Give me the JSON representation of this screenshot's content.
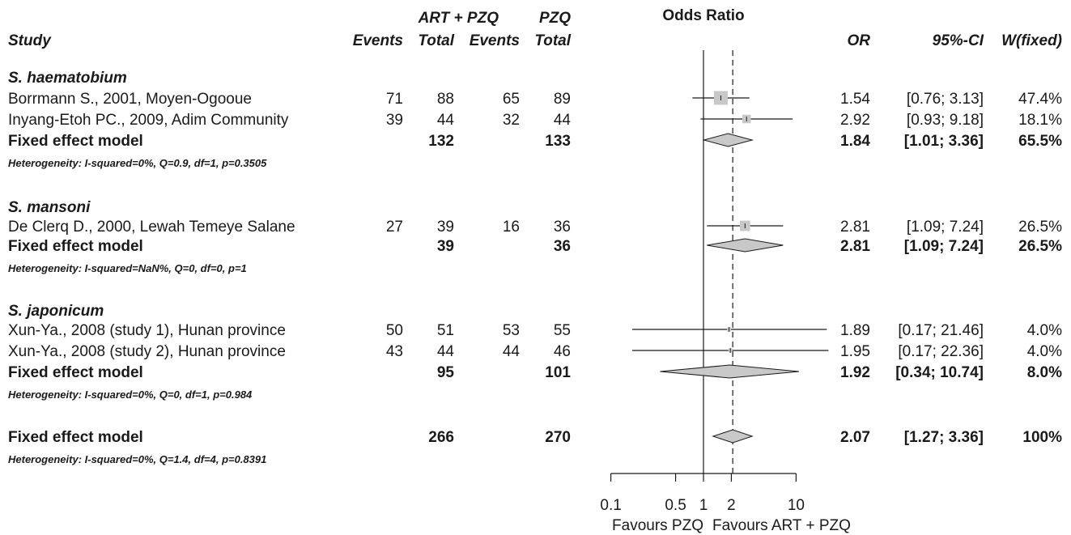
{
  "chart_data": {
    "type": "forest",
    "scale": "log",
    "title": "Odds Ratio",
    "x_ticks": [
      0.1,
      0.5,
      1,
      2,
      10
    ],
    "null_value": 1,
    "pooled_value": 2.07,
    "favours_left": "Favours PZQ",
    "favours_right": "Favours ART + PZQ",
    "header": {
      "group1": "ART + PZQ",
      "group2": "PZQ",
      "study": "Study",
      "events": "Events",
      "total": "Total",
      "or": "OR",
      "ci": "95%-CI",
      "weight": "W(fixed)"
    },
    "rows": [
      {
        "kind": "group",
        "label": "S. haematobium"
      },
      {
        "kind": "study",
        "label": "Borrmann S., 2001, Moyen-Ogooue",
        "e1": "71",
        "n1": "88",
        "e2": "65",
        "n2": "89",
        "or": 1.54,
        "lo": 0.76,
        "hi": 3.13,
        "or_text": "1.54",
        "ci_text": "[0.76;  3.13]",
        "w_text": "47.4%",
        "w": 47.4
      },
      {
        "kind": "study",
        "label": "Inyang-Etoh PC., 2009, Adim Community",
        "e1": "39",
        "n1": "44",
        "e2": "32",
        "n2": "44",
        "or": 2.92,
        "lo": 0.93,
        "hi": 9.18,
        "or_text": "2.92",
        "ci_text": "[0.93;  9.18]",
        "w_text": "18.1%",
        "w": 18.1
      },
      {
        "kind": "pooled",
        "label": "Fixed effect model",
        "n1": "132",
        "n2": "133",
        "or": 1.84,
        "lo": 1.01,
        "hi": 3.36,
        "or_text": "1.84",
        "ci_text": "[1.01;  3.36]",
        "w_text": "65.5%"
      },
      {
        "kind": "het",
        "label": "Heterogeneity: I-squared=0%, Q=0.9, df=1, p=0.3505"
      },
      {
        "kind": "group",
        "label": "S. mansoni"
      },
      {
        "kind": "study",
        "label": "De Clerq D., 2000, Lewah Temeye Salane",
        "e1": "27",
        "n1": "39",
        "e2": "16",
        "n2": "36",
        "or": 2.81,
        "lo": 1.09,
        "hi": 7.24,
        "or_text": "2.81",
        "ci_text": "[1.09;  7.24]",
        "w_text": "26.5%",
        "w": 26.5
      },
      {
        "kind": "pooled",
        "label": "Fixed effect model",
        "n1": "39",
        "n2": "36",
        "or": 2.81,
        "lo": 1.09,
        "hi": 7.24,
        "or_text": "2.81",
        "ci_text": "[1.09;  7.24]",
        "w_text": "26.5%"
      },
      {
        "kind": "het",
        "label": "Heterogeneity: I-squared=NaN%, Q=0, df=0, p=1"
      },
      {
        "kind": "group",
        "label": "S. japonicum"
      },
      {
        "kind": "study",
        "label": "Xun-Ya., 2008 (study 1), Hunan province",
        "e1": "50",
        "n1": "51",
        "e2": "53",
        "n2": "55",
        "or": 1.89,
        "lo": 0.17,
        "hi": 21.46,
        "or_text": "1.89",
        "ci_text": "[0.17; 21.46]",
        "w_text": "4.0%",
        "w": 4.0
      },
      {
        "kind": "study",
        "label": "Xun-Ya., 2008 (study 2), Hunan province",
        "e1": "43",
        "n1": "44",
        "e2": "44",
        "n2": "46",
        "or": 1.95,
        "lo": 0.17,
        "hi": 22.36,
        "or_text": "1.95",
        "ci_text": "[0.17; 22.36]",
        "w_text": "4.0%",
        "w": 4.0
      },
      {
        "kind": "pooled",
        "label": "Fixed effect model",
        "n1": "95",
        "n2": "101",
        "or": 1.92,
        "lo": 0.34,
        "hi": 10.74,
        "or_text": "1.92",
        "ci_text": "[0.34; 10.74]",
        "w_text": "8.0%"
      },
      {
        "kind": "het",
        "label": "Heterogeneity: I-squared=0%, Q=0, df=1, p=0.984"
      },
      {
        "kind": "pooled",
        "label": "Fixed effect model",
        "n1": "266",
        "n2": "270",
        "or": 2.07,
        "lo": 1.27,
        "hi": 3.36,
        "or_text": "2.07",
        "ci_text": "[1.27;  3.36]",
        "w_text": "100%"
      },
      {
        "kind": "het",
        "label": "Heterogeneity: I-squared=0%, Q=1.4, df=4, p=0.8391"
      }
    ],
    "colors": {
      "marker": "#c8c8c8",
      "line": "#1a1a1a"
    }
  }
}
